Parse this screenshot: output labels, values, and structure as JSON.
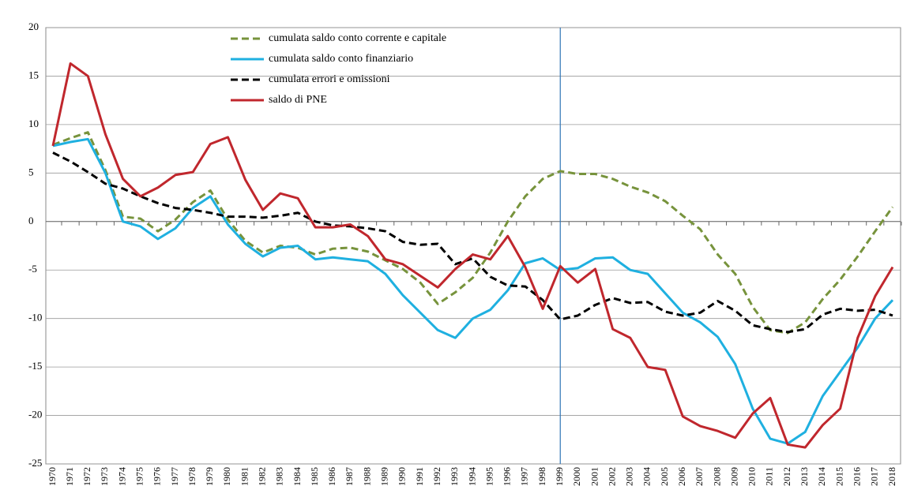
{
  "chart_data": {
    "type": "line",
    "x": [
      1970,
      1971,
      1972,
      1973,
      1974,
      1975,
      1976,
      1977,
      1978,
      1979,
      1980,
      1981,
      1982,
      1983,
      1984,
      1985,
      1986,
      1987,
      1988,
      1989,
      1990,
      1991,
      1992,
      1993,
      1994,
      1995,
      1996,
      1997,
      1998,
      1999,
      2000,
      2001,
      2002,
      2003,
      2004,
      2005,
      2006,
      2007,
      2008,
      2009,
      2010,
      2011,
      2012,
      2013,
      2014,
      2015,
      2016,
      2017,
      2018
    ],
    "xlim": [
      1970,
      2018
    ],
    "ylim": [
      -25,
      20
    ],
    "yticks": [
      -25,
      -20,
      -15,
      -10,
      -5,
      0,
      5,
      10,
      15,
      20
    ],
    "grid": true,
    "vline": 1999,
    "series": [
      {
        "name": "cumulata saldo conto corrente e capitale",
        "color": "#77933c",
        "dash": true,
        "values": [
          7.9,
          8.6,
          9.2,
          5.3,
          0.5,
          0.3,
          -1.0,
          0.2,
          2.0,
          3.2,
          0.2,
          -2.0,
          -3.2,
          -2.5,
          -2.7,
          -3.4,
          -2.8,
          -2.7,
          -3.1,
          -4.0,
          -4.9,
          -6.3,
          -8.5,
          -7.3,
          -5.8,
          -3.2,
          0.0,
          2.6,
          4.4,
          5.2,
          4.9,
          4.9,
          4.4,
          3.6,
          3.0,
          2.1,
          0.6,
          -0.8,
          -3.4,
          -5.4,
          -8.8,
          -11.2,
          -11.5,
          -10.4,
          -8.0,
          -6.0,
          -3.6,
          -1.0,
          1.5
        ]
      },
      {
        "name": "cumulata saldo conto finanziario",
        "color": "#1fb0e0",
        "dash": false,
        "values": [
          7.8,
          8.2,
          8.5,
          5.0,
          0.0,
          -0.5,
          -1.8,
          -0.7,
          1.4,
          2.6,
          -0.3,
          -2.3,
          -3.6,
          -2.7,
          -2.5,
          -3.9,
          -3.7,
          -3.9,
          -4.1,
          -5.4,
          -7.6,
          -9.4,
          -11.2,
          -12.0,
          -10.0,
          -9.1,
          -7.1,
          -4.3,
          -3.8,
          -5.0,
          -4.8,
          -3.8,
          -3.7,
          -5.0,
          -5.4,
          -7.4,
          -9.4,
          -10.4,
          -11.9,
          -14.7,
          -19.3,
          -22.4,
          -22.9,
          -21.7,
          -18.0,
          -15.5,
          -13.0,
          -10.0,
          -8.1
        ]
      },
      {
        "name": "cumulata errori e omissioni",
        "color": "#000000",
        "dash": true,
        "values": [
          7.1,
          6.2,
          5.1,
          3.9,
          3.4,
          2.6,
          1.9,
          1.4,
          1.2,
          0.9,
          0.5,
          0.5,
          0.4,
          0.6,
          0.9,
          0.0,
          -0.4,
          -0.5,
          -0.7,
          -1.0,
          -2.1,
          -2.4,
          -2.3,
          -4.4,
          -3.8,
          -5.7,
          -6.6,
          -6.7,
          -8.1,
          -10.1,
          -9.7,
          -8.6,
          -7.9,
          -8.4,
          -8.3,
          -9.3,
          -9.7,
          -9.4,
          -8.2,
          -9.2,
          -10.7,
          -11.1,
          -11.4,
          -11.1,
          -9.6,
          -9.0,
          -9.2,
          -9.1,
          -9.7
        ]
      },
      {
        "name": "saldo di PNE",
        "color": "#c0272d",
        "dash": false,
        "values": [
          7.8,
          16.3,
          15.0,
          9.0,
          4.4,
          2.6,
          3.5,
          4.8,
          5.1,
          8.0,
          8.7,
          4.3,
          1.2,
          2.9,
          2.4,
          -0.6,
          -0.6,
          -0.3,
          -1.5,
          -3.9,
          -4.4,
          -5.6,
          -6.8,
          -4.9,
          -3.4,
          -3.9,
          -1.5,
          -4.7,
          -9.0,
          -4.6,
          -6.3,
          -4.9,
          -11.1,
          -12.0,
          -15.0,
          -15.3,
          -20.1,
          -21.1,
          -21.6,
          -22.3,
          -19.8,
          -18.2,
          -23.0,
          -23.3,
          -21.0,
          -19.3,
          -12.0,
          -7.7,
          -4.7
        ]
      }
    ]
  }
}
